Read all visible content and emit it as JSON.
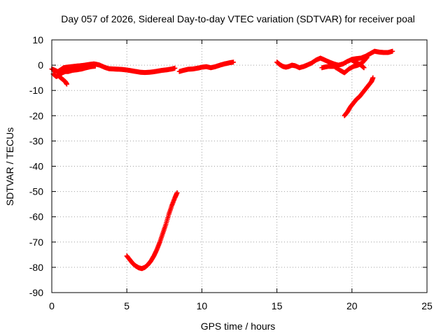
{
  "chart_data": {
    "type": "scatter",
    "title": "Day 057 of 2026, Sidereal Day-to-day VTEC variation (SDTVAR) for receiver poal",
    "xlabel": "GPS time / hours",
    "ylabel": "SDTVAR / TECUs",
    "xlim": [
      0,
      25
    ],
    "ylim": [
      -90,
      10
    ],
    "xticks": [
      0,
      5,
      10,
      15,
      20,
      25
    ],
    "yticks": [
      -90,
      -80,
      -70,
      -60,
      -50,
      -40,
      -30,
      -20,
      -10,
      0,
      10
    ],
    "grid": true,
    "marker": "plus",
    "color": "#ff0000",
    "series": [
      {
        "name": "main-trace-early",
        "points": [
          [
            0.0,
            -1.5
          ],
          [
            0.2,
            -2.0
          ],
          [
            0.4,
            -2.6
          ],
          [
            0.6,
            -1.8
          ],
          [
            0.8,
            -1.0
          ],
          [
            1.0,
            -0.8
          ],
          [
            1.3,
            -0.6
          ],
          [
            1.6,
            -0.4
          ],
          [
            1.9,
            -0.2
          ],
          [
            2.2,
            0.0
          ],
          [
            2.5,
            0.3
          ],
          [
            2.8,
            0.5
          ],
          [
            3.0,
            0.3
          ],
          [
            3.2,
            0.0
          ],
          [
            3.5,
            -0.8
          ],
          [
            3.8,
            -1.4
          ],
          [
            4.1,
            -1.5
          ],
          [
            4.4,
            -1.6
          ],
          [
            4.7,
            -1.7
          ],
          [
            5.0,
            -1.9
          ],
          [
            5.3,
            -2.2
          ],
          [
            5.6,
            -2.5
          ],
          [
            5.9,
            -2.8
          ],
          [
            6.2,
            -2.9
          ],
          [
            6.5,
            -2.8
          ],
          [
            6.8,
            -2.6
          ],
          [
            7.1,
            -2.3
          ],
          [
            7.4,
            -2.0
          ],
          [
            7.7,
            -1.8
          ],
          [
            8.0,
            -1.5
          ],
          [
            8.2,
            -1.2
          ]
        ]
      },
      {
        "name": "main-trace-lower",
        "points": [
          [
            0.1,
            -3.5
          ],
          [
            0.3,
            -4.5
          ],
          [
            0.5,
            -4.0
          ],
          [
            0.7,
            -3.0
          ],
          [
            0.9,
            -2.5
          ],
          [
            1.1,
            -2.5
          ],
          [
            1.4,
            -2.0
          ],
          [
            1.7,
            -1.8
          ],
          [
            2.0,
            -1.5
          ],
          [
            2.3,
            -1.0
          ],
          [
            2.6,
            -0.6
          ],
          [
            2.9,
            -0.4
          ]
        ]
      },
      {
        "name": "main-trace-drop",
        "points": [
          [
            0.5,
            -4.5
          ],
          [
            0.7,
            -5.5
          ],
          [
            0.9,
            -6.5
          ],
          [
            1.0,
            -7.5
          ]
        ]
      },
      {
        "name": "main-trace-mid",
        "points": [
          [
            8.5,
            -2.5
          ],
          [
            8.8,
            -2.0
          ],
          [
            9.1,
            -1.6
          ],
          [
            9.4,
            -1.5
          ],
          [
            9.7,
            -1.2
          ],
          [
            10.0,
            -0.8
          ],
          [
            10.3,
            -0.6
          ],
          [
            10.6,
            -1.0
          ],
          [
            10.9,
            -0.6
          ],
          [
            11.2,
            0.0
          ],
          [
            11.5,
            0.5
          ],
          [
            11.8,
            0.9
          ],
          [
            12.1,
            1.2
          ]
        ]
      },
      {
        "name": "main-trace-late",
        "points": [
          [
            15.0,
            1.2
          ],
          [
            15.2,
            0.2
          ],
          [
            15.4,
            -0.5
          ],
          [
            15.6,
            -0.8
          ],
          [
            15.8,
            -0.5
          ],
          [
            16.0,
            0.0
          ],
          [
            16.2,
            -0.2
          ],
          [
            16.5,
            -1.0
          ],
          [
            16.8,
            -0.5
          ],
          [
            17.0,
            0.0
          ],
          [
            17.3,
            0.8
          ],
          [
            17.6,
            2.0
          ],
          [
            17.9,
            2.8
          ],
          [
            18.2,
            2.0
          ],
          [
            18.5,
            1.2
          ],
          [
            18.8,
            0.5
          ],
          [
            19.1,
            0.0
          ],
          [
            19.4,
            0.5
          ],
          [
            19.7,
            1.5
          ],
          [
            20.0,
            2.3
          ],
          [
            20.3,
            2.6
          ],
          [
            20.6,
            2.8
          ],
          [
            20.9,
            3.5
          ],
          [
            21.2,
            4.5
          ],
          [
            21.5,
            5.5
          ],
          [
            21.8,
            5.2
          ],
          [
            22.1,
            5.0
          ],
          [
            22.4,
            5.0
          ],
          [
            22.7,
            5.5
          ]
        ]
      },
      {
        "name": "late-lower-branch",
        "points": [
          [
            18.0,
            -1.0
          ],
          [
            18.4,
            -0.5
          ],
          [
            18.8,
            -0.5
          ],
          [
            19.2,
            -2.0
          ],
          [
            19.5,
            -3.0
          ],
          [
            19.8,
            -1.5
          ],
          [
            20.1,
            -0.5
          ],
          [
            20.4,
            0.0
          ],
          [
            20.7,
            1.0
          ],
          [
            21.0,
            3.0
          ]
        ]
      },
      {
        "name": "late-descending-branch",
        "points": [
          [
            20.0,
            2.0
          ],
          [
            20.3,
            1.0
          ],
          [
            20.6,
            0.0
          ],
          [
            20.8,
            -1.0
          ]
        ]
      },
      {
        "name": "deep-dip",
        "points": [
          [
            5.0,
            -75.5
          ],
          [
            5.2,
            -77.0
          ],
          [
            5.4,
            -78.5
          ],
          [
            5.6,
            -79.5
          ],
          [
            5.8,
            -80.2
          ],
          [
            6.0,
            -80.5
          ],
          [
            6.2,
            -80.0
          ],
          [
            6.4,
            -79.0
          ],
          [
            6.6,
            -77.5
          ],
          [
            6.8,
            -75.5
          ],
          [
            7.0,
            -73.0
          ],
          [
            7.2,
            -70.0
          ],
          [
            7.4,
            -66.5
          ],
          [
            7.6,
            -63.0
          ],
          [
            7.8,
            -59.0
          ],
          [
            8.0,
            -55.5
          ],
          [
            8.2,
            -52.5
          ],
          [
            8.35,
            -50.5
          ]
        ]
      },
      {
        "name": "rising-segment",
        "points": [
          [
            19.5,
            -20.0
          ],
          [
            19.7,
            -18.5
          ],
          [
            19.9,
            -16.5
          ],
          [
            20.1,
            -15.0
          ],
          [
            20.3,
            -13.5
          ],
          [
            20.5,
            -12.5
          ],
          [
            20.7,
            -11.0
          ],
          [
            20.9,
            -9.5
          ],
          [
            21.1,
            -8.0
          ],
          [
            21.3,
            -6.5
          ],
          [
            21.4,
            -5.0
          ]
        ]
      }
    ]
  }
}
